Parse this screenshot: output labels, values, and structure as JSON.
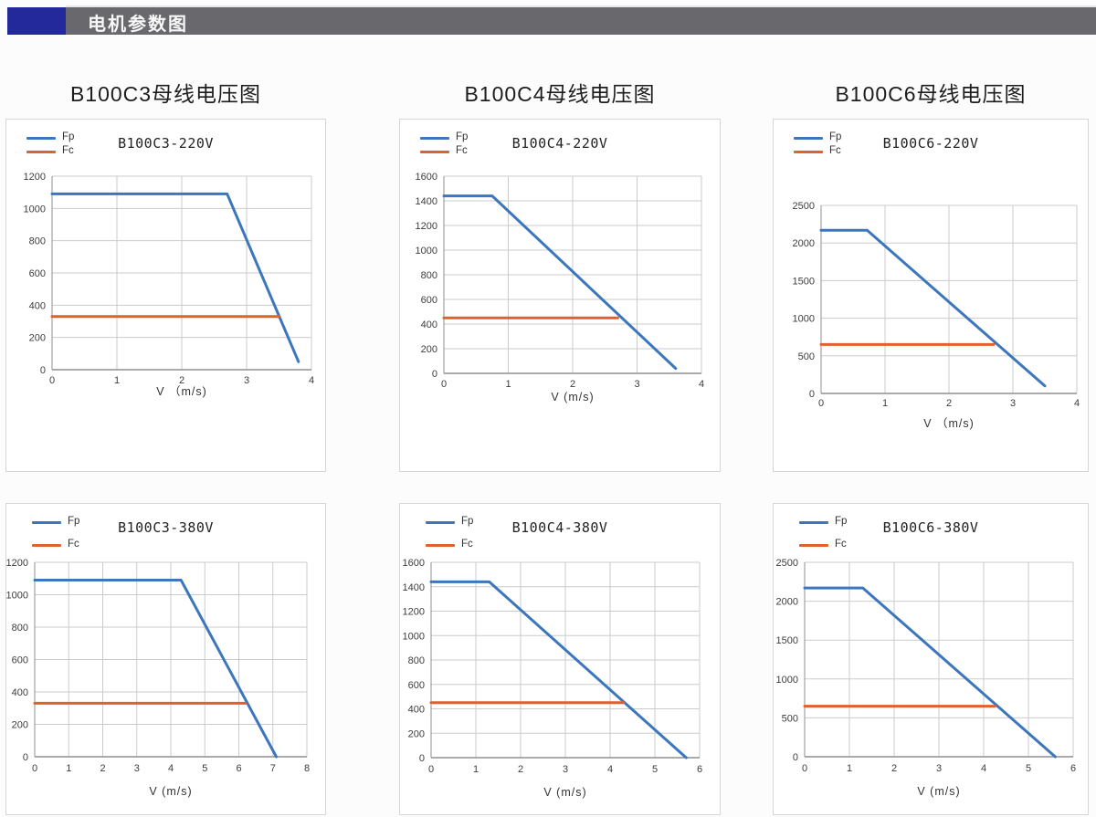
{
  "header": {
    "title": "电机参数图"
  },
  "section_titles": [
    "B100C3母线电压图",
    "B100C4母线电压图",
    "B100C6母线电压图"
  ],
  "colors": {
    "fp": "#3c76bc",
    "fc": "#e0612e",
    "header_block": "#23289a",
    "header_bar": "#68686d",
    "grid": "#cbcbcb",
    "axis": "#8f8f8f",
    "card_border": "#d6d6da"
  },
  "chart_data": [
    {
      "type": "line",
      "title": "B100C3-220V",
      "xlabel": "V （m/s)",
      "legend_position": "top-left",
      "grid": true,
      "xlim": [
        0,
        4
      ],
      "ylim": [
        0,
        1200
      ],
      "x_ticks": [
        0,
        1,
        2,
        3,
        4
      ],
      "y_ticks": [
        0,
        200,
        400,
        600,
        800,
        1000,
        1200
      ],
      "series": [
        {
          "name": "Fp",
          "color_key": "fp",
          "points": [
            [
              0,
              1090
            ],
            [
              2.7,
              1090
            ],
            [
              3.8,
              50
            ]
          ]
        },
        {
          "name": "Fc",
          "color_key": "fc",
          "points": [
            [
              0,
              330
            ],
            [
              3.5,
              330
            ]
          ]
        }
      ]
    },
    {
      "type": "line",
      "title": "B100C4-220V",
      "xlabel": "V (m/s)",
      "legend_position": "top-left",
      "grid": true,
      "xlim": [
        0,
        4
      ],
      "ylim": [
        0,
        1600
      ],
      "x_ticks": [
        0,
        1,
        2,
        3,
        4
      ],
      "y_ticks": [
        0,
        200,
        400,
        600,
        800,
        1000,
        1200,
        1400,
        1600
      ],
      "series": [
        {
          "name": "Fp",
          "color_key": "fp",
          "points": [
            [
              0,
              1440
            ],
            [
              0.75,
              1440
            ],
            [
              3.6,
              40
            ]
          ]
        },
        {
          "name": "Fc",
          "color_key": "fc",
          "points": [
            [
              0,
              450
            ],
            [
              2.7,
              450
            ]
          ]
        }
      ]
    },
    {
      "type": "line",
      "title": "B100C6-220V",
      "xlabel": "V （m/s)",
      "legend_position": "top-left",
      "grid": true,
      "xlim": [
        0,
        4
      ],
      "ylim": [
        0,
        2500
      ],
      "x_ticks": [
        0,
        1,
        2,
        3,
        4
      ],
      "y_ticks": [
        0,
        500,
        1000,
        1500,
        2000,
        2500
      ],
      "series": [
        {
          "name": "Fp",
          "color_key": "fp",
          "points": [
            [
              0,
              2170
            ],
            [
              0.72,
              2170
            ],
            [
              3.5,
              100
            ]
          ]
        },
        {
          "name": "Fc",
          "color_key": "fc",
          "points": [
            [
              0,
              650
            ],
            [
              2.7,
              650
            ]
          ]
        }
      ]
    },
    {
      "type": "line",
      "title": "B100C3-380V",
      "xlabel": "V (m/s)",
      "legend_position": "top-left",
      "grid": true,
      "xlim": [
        0,
        8
      ],
      "ylim": [
        0,
        1200
      ],
      "x_ticks": [
        0,
        1,
        2,
        3,
        4,
        5,
        6,
        7,
        8
      ],
      "y_ticks": [
        0,
        200,
        400,
        600,
        800,
        1000,
        1200
      ],
      "series": [
        {
          "name": "Fp",
          "color_key": "fp",
          "points": [
            [
              0,
              1090
            ],
            [
              4.3,
              1090
            ],
            [
              7.1,
              0
            ]
          ]
        },
        {
          "name": "Fc",
          "color_key": "fc",
          "points": [
            [
              0,
              330
            ],
            [
              6.2,
              330
            ]
          ]
        }
      ]
    },
    {
      "type": "line",
      "title": "B100C4-380V",
      "xlabel": "V (m/s)",
      "legend_position": "top-left",
      "grid": true,
      "xlim": [
        0,
        6
      ],
      "ylim": [
        0,
        1600
      ],
      "x_ticks": [
        0,
        1,
        2,
        3,
        4,
        5,
        6
      ],
      "y_ticks": [
        0,
        200,
        400,
        600,
        800,
        1000,
        1200,
        1400,
        1600
      ],
      "series": [
        {
          "name": "Fp",
          "color_key": "fp",
          "points": [
            [
              0,
              1440
            ],
            [
              1.3,
              1440
            ],
            [
              5.7,
              0
            ]
          ]
        },
        {
          "name": "Fc",
          "color_key": "fc",
          "points": [
            [
              0,
              450
            ],
            [
              4.3,
              450
            ]
          ]
        }
      ]
    },
    {
      "type": "line",
      "title": "B100C6-380V",
      "xlabel": "V (m/s)",
      "legend_position": "top-left",
      "grid": true,
      "xlim": [
        0,
        6
      ],
      "ylim": [
        0,
        2500
      ],
      "x_ticks": [
        0,
        1,
        2,
        3,
        4,
        5,
        6
      ],
      "y_ticks": [
        0,
        500,
        1000,
        1500,
        2000,
        2500
      ],
      "series": [
        {
          "name": "Fp",
          "color_key": "fp",
          "points": [
            [
              0,
              2170
            ],
            [
              1.3,
              2170
            ],
            [
              5.6,
              0
            ]
          ]
        },
        {
          "name": "Fc",
          "color_key": "fc",
          "points": [
            [
              0,
              650
            ],
            [
              4.25,
              650
            ]
          ]
        }
      ]
    }
  ]
}
